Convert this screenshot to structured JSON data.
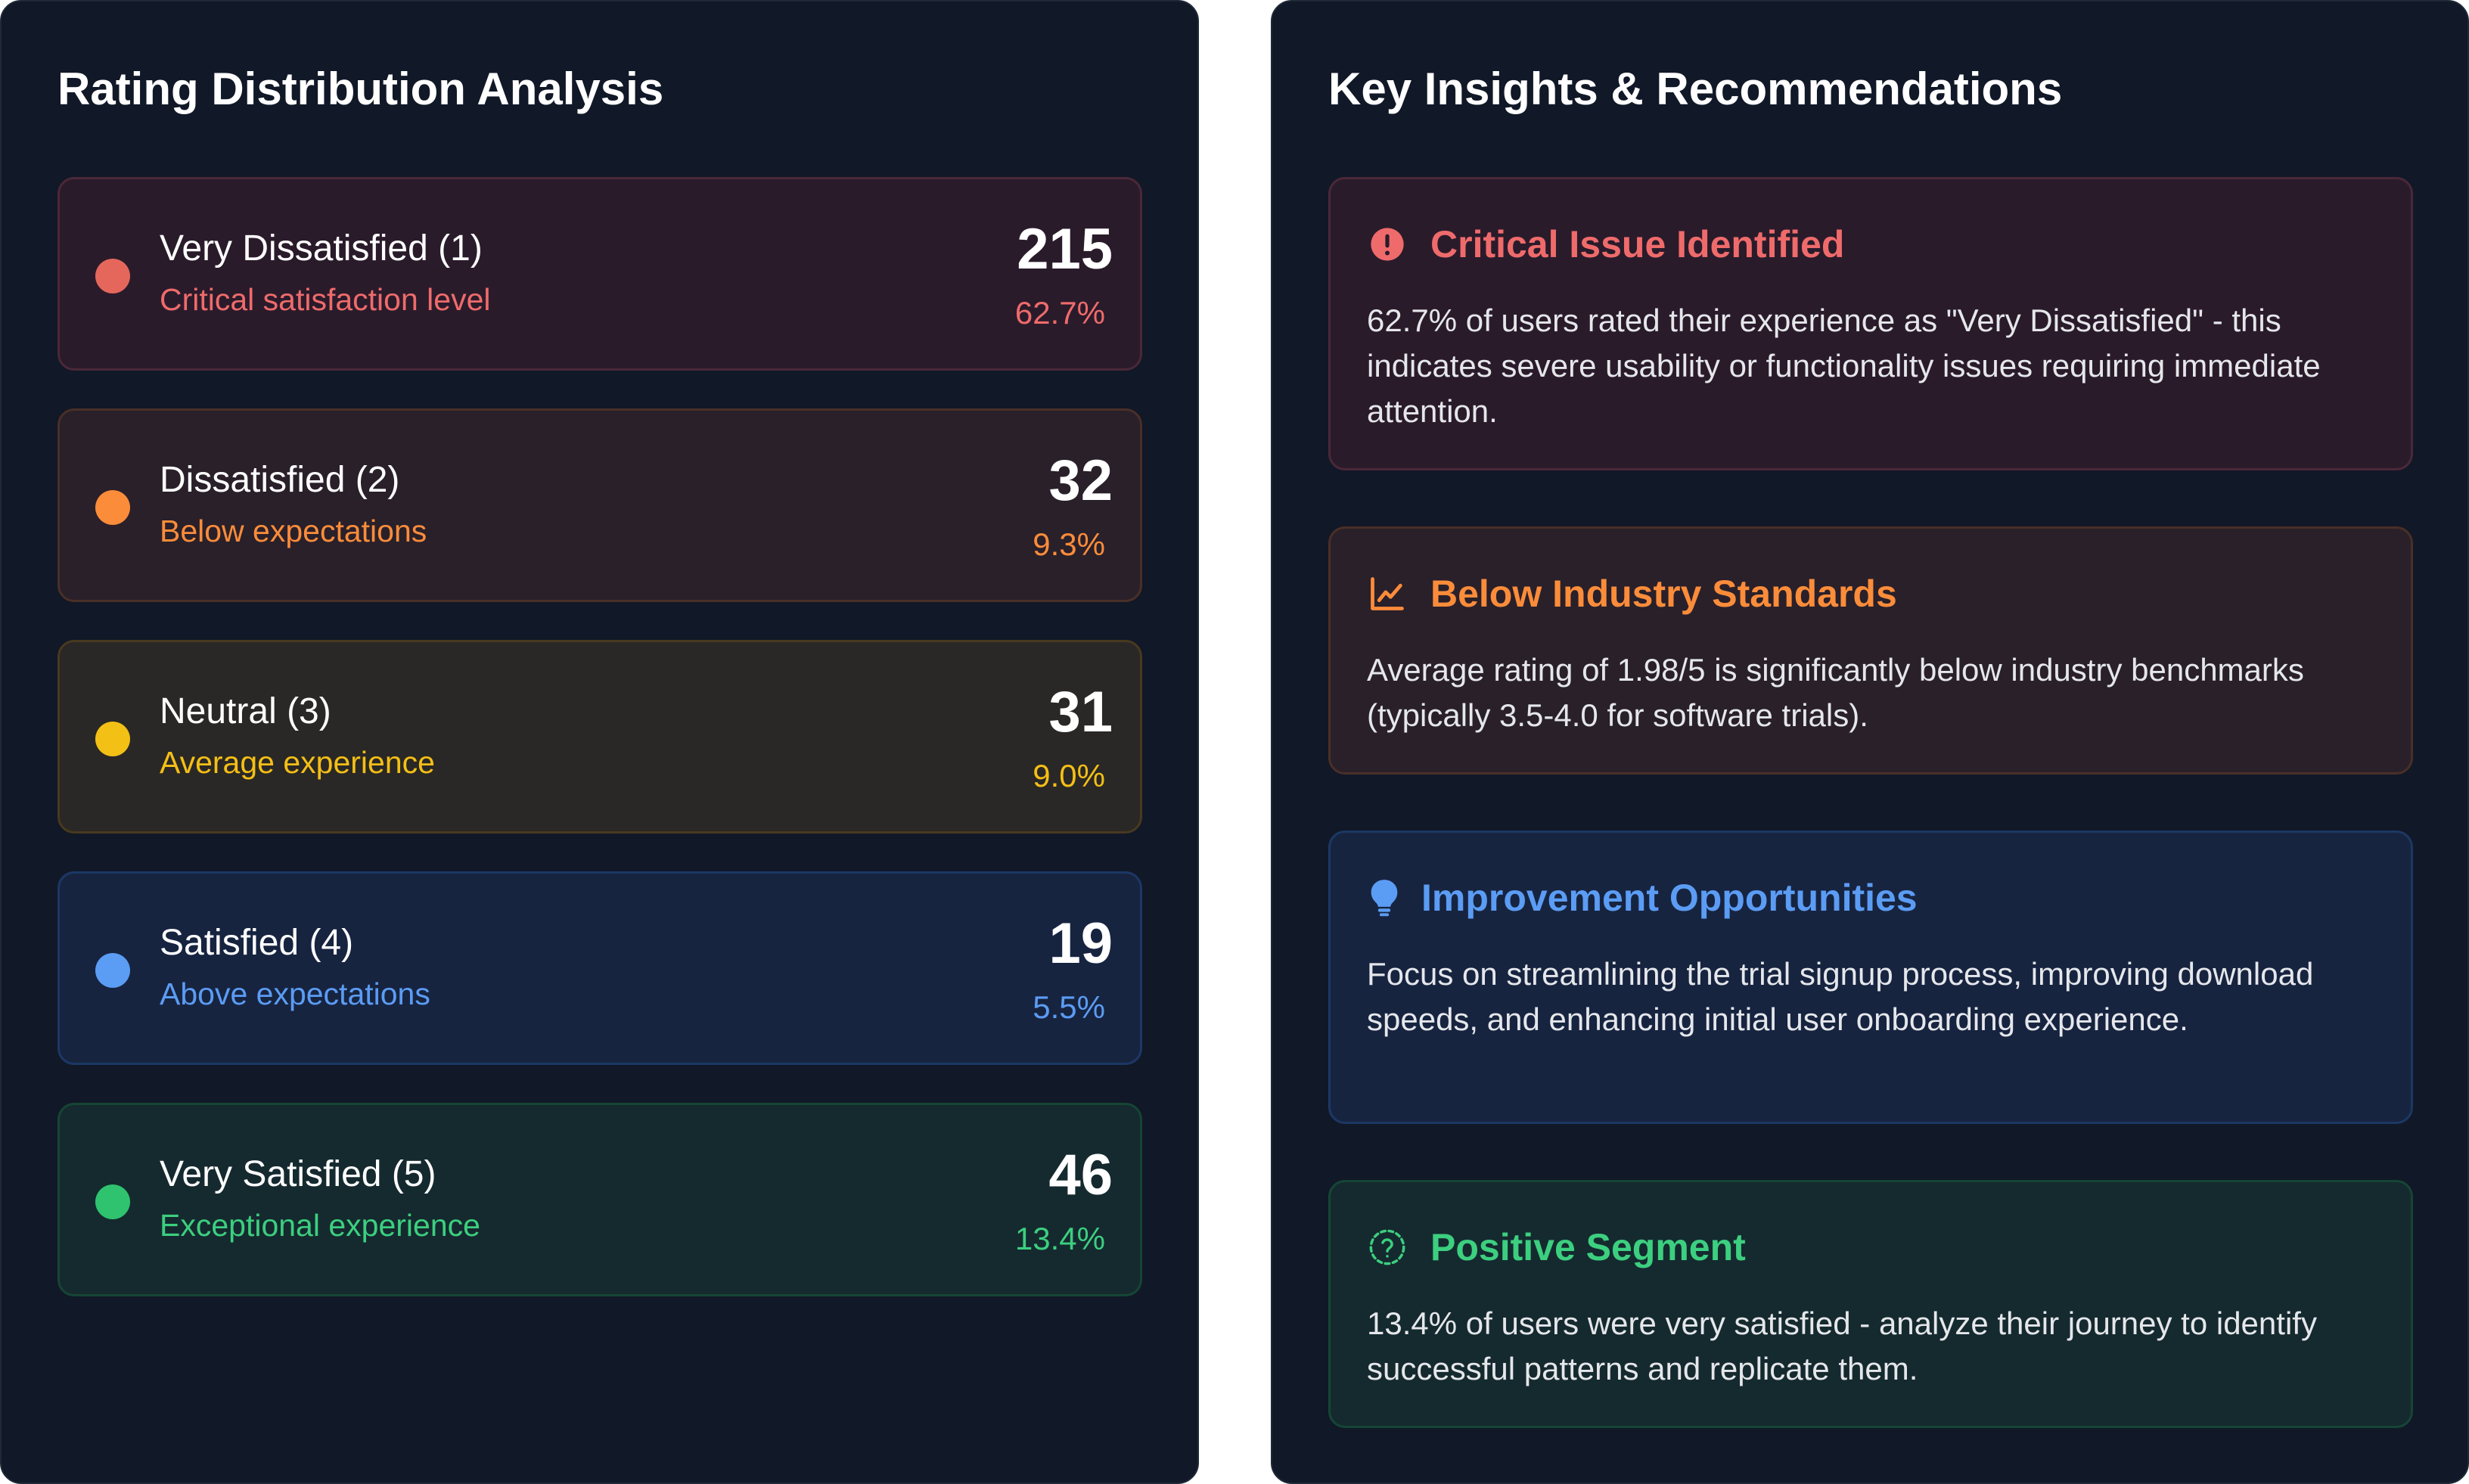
{
  "rating_panel": {
    "title": "Rating Distribution Analysis",
    "ratings": [
      {
        "label": "Very Dissatisfied (1)",
        "description": "Critical satisfaction level",
        "count": "215",
        "percent": "62.7%",
        "accent": "#ef6b6b",
        "dot": "#e5675c",
        "background": "#2a1b2b",
        "border": "#4a2838"
      },
      {
        "label": "Dissatisfied (2)",
        "description": "Below expectations",
        "count": "32",
        "percent": "9.3%",
        "accent": "#fb8c3a",
        "dot": "#fb8c3a",
        "background": "#29202a",
        "border": "#4a2f27"
      },
      {
        "label": "Neutral (3)",
        "description": "Average experience",
        "count": "31",
        "percent": "9.0%",
        "accent": "#f4bf16",
        "dot": "#f3c015",
        "background": "#2a2826",
        "border": "#48391f"
      },
      {
        "label": "Satisfied (4)",
        "description": "Above expectations",
        "count": "19",
        "percent": "5.5%",
        "accent": "#5b9cf4",
        "dot": "#5b9cf4",
        "background": "#172440",
        "border": "#1c3864"
      },
      {
        "label": "Very Satisfied (5)",
        "description": "Exceptional experience",
        "count": "46",
        "percent": "13.4%",
        "accent": "#3ccf7f",
        "dot": "#2fc36f",
        "background": "#152a2f",
        "border": "#164535"
      }
    ]
  },
  "insights_panel": {
    "title": "Key Insights & Recommendations",
    "insights": [
      {
        "icon": "exclamation-circle-icon",
        "title": "Critical Issue Identified",
        "body": "62.7% of users rated their experience as \"Very Dissatisfied\" - this indicates severe usability or functionality issues requiring immediate attention.",
        "accent": "#ef6b6b",
        "background": "#2a1b2b",
        "border": "#4a2838"
      },
      {
        "icon": "trend-chart-icon",
        "title": "Below Industry Standards",
        "body": "Average rating of 1.98/5 is significantly below industry benchmarks (typically 3.5-4.0 for software trials).",
        "accent": "#fb8c3a",
        "background": "#29202a",
        "border": "#4a2f27"
      },
      {
        "icon": "lightbulb-icon",
        "title": "Improvement Opportunities",
        "body": "Focus on streamlining the trial signup process, improving download speeds, and enhancing initial user onboarding experience.",
        "accent": "#5b9cf4",
        "background": "#172440",
        "border": "#1c3864"
      },
      {
        "icon": "question-circle-icon",
        "title": "Positive Segment",
        "body": "13.4% of users were very satisfied - analyze their journey to identify successful patterns and replicate them.",
        "accent": "#3ccf7f",
        "background": "#152a2f",
        "border": "#164535"
      }
    ]
  }
}
